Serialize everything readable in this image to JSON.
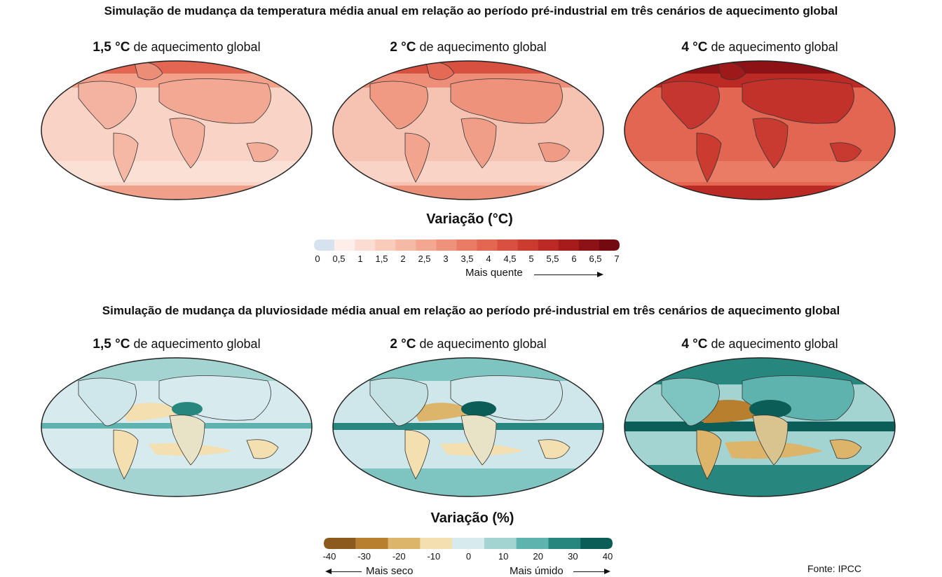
{
  "temperature": {
    "title": "Simulação de mudança da temperatura média anual em relação ao período pré-industrial em três cenários de aquecimento global",
    "maps": [
      {
        "scenario": "1,5 °C",
        "caption": "de aquecimento global"
      },
      {
        "scenario": "2 °C",
        "caption": "de aquecimento global"
      },
      {
        "scenario": "4 °C",
        "caption": "de aquecimento global"
      }
    ],
    "legend": {
      "title": "Variação (°C)",
      "ticks": [
        "0",
        "0,5",
        "1",
        "1,5",
        "2",
        "2,5",
        "3",
        "3,5",
        "4",
        "4,5",
        "5",
        "5,5",
        "6",
        "6,5",
        "7"
      ],
      "arrow_label": "Mais quente",
      "colors": [
        "#d6e3ef",
        "#fdeee9",
        "#fbdcd2",
        "#f9cbbb",
        "#f6b9a5",
        "#f3a690",
        "#ef927b",
        "#ea7c66",
        "#e36651",
        "#d8503f",
        "#cb3b30",
        "#bb2a24",
        "#a51c1b",
        "#8d1216",
        "#730a11"
      ]
    }
  },
  "precipitation": {
    "title": "Simulação de mudança da pluviosidade média anual em relação ao período pré-industrial em três cenários de aquecimento global",
    "maps": [
      {
        "scenario": "1,5 °C",
        "caption": "de aquecimento global"
      },
      {
        "scenario": "2 °C",
        "caption": "de aquecimento global"
      },
      {
        "scenario": "4 °C",
        "caption": "de aquecimento global"
      }
    ],
    "legend": {
      "title": "Variação (%)",
      "ticks": [
        "-40",
        "-30",
        "-20",
        "-10",
        "0",
        "10",
        "20",
        "30",
        "40"
      ],
      "dry_label": "Mais seco",
      "wet_label": "Mais úmido",
      "colors": [
        "#8c5a1c",
        "#b8802e",
        "#dcb46a",
        "#f3dfaf",
        "#d7ebef",
        "#a4d4d2",
        "#5fb3ae",
        "#27877f",
        "#0b5e57"
      ]
    }
  },
  "source": "Fonte: IPCC"
}
